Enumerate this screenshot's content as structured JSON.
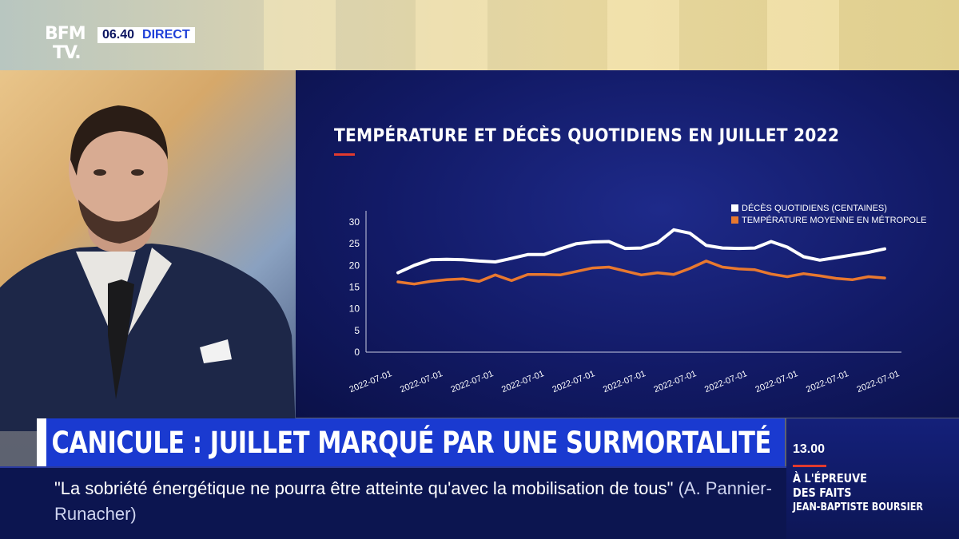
{
  "channel": {
    "logo_line1": "BFM",
    "logo_line2": "TV.",
    "time": "06.40",
    "live_label": "DIRECT"
  },
  "chart_data": {
    "type": "line",
    "title": "TEMPÉRATURE ET DÉCÈS QUOTIDIENS EN JUILLET 2022",
    "ylim": [
      0,
      30
    ],
    "yticks": [
      0,
      5,
      10,
      15,
      20,
      25,
      30
    ],
    "xtick_labels": [
      "2022-07-01",
      "2022-07-01",
      "2022-07-01",
      "2022-07-01",
      "2022-07-01",
      "2022-07-01",
      "2022-07-01",
      "2022-07-01",
      "2022-07-01",
      "2022-07-01",
      "2022-07-01"
    ],
    "legend_position": "top-right",
    "series": [
      {
        "name": "DÉCÈS QUOTIDIENS (CENTAINES)",
        "color": "#ffffff",
        "values": [
          18.3,
          20.0,
          21.3,
          21.4,
          21.3,
          21.0,
          20.8,
          21.6,
          22.5,
          22.5,
          23.8,
          25.0,
          25.4,
          25.5,
          23.9,
          24.0,
          25.2,
          28.2,
          27.4,
          24.6,
          24.0,
          23.9,
          24.0,
          25.5,
          24.2,
          22.0,
          21.2,
          21.8,
          22.4,
          23.0,
          23.8
        ]
      },
      {
        "name": "TEMPÉRATURE MOYENNE EN MÉTROPOLE",
        "color": "#e8782f",
        "values": [
          16.2,
          15.7,
          16.3,
          16.7,
          16.9,
          16.3,
          17.8,
          16.5,
          17.9,
          17.9,
          17.8,
          18.6,
          19.4,
          19.6,
          18.7,
          17.8,
          18.3,
          17.9,
          19.3,
          21.0,
          19.6,
          19.2,
          19.0,
          18.0,
          17.4,
          18.1,
          17.6,
          17.0,
          16.7,
          17.4,
          17.1
        ]
      }
    ]
  },
  "banner": {
    "headline": "CANICULE : JUILLET MARQUÉ PAR UNE SURMORTALITÉ"
  },
  "ticker": {
    "quote": "\"La sobriété énergétique ne pourra être atteinte qu'avec la mobilisation de tous\"",
    "author": "(A. Pannier-Runacher)"
  },
  "promo": {
    "time": "13.00",
    "title_line1": "À L'ÉPREUVE",
    "title_line2": "DES FAITS",
    "host": "JEAN-BAPTISTE BOURSIER"
  },
  "colors": {
    "accent_blue": "#1a3ad0",
    "panel_navy": "#121a66",
    "accent_red": "#e23a2e"
  }
}
